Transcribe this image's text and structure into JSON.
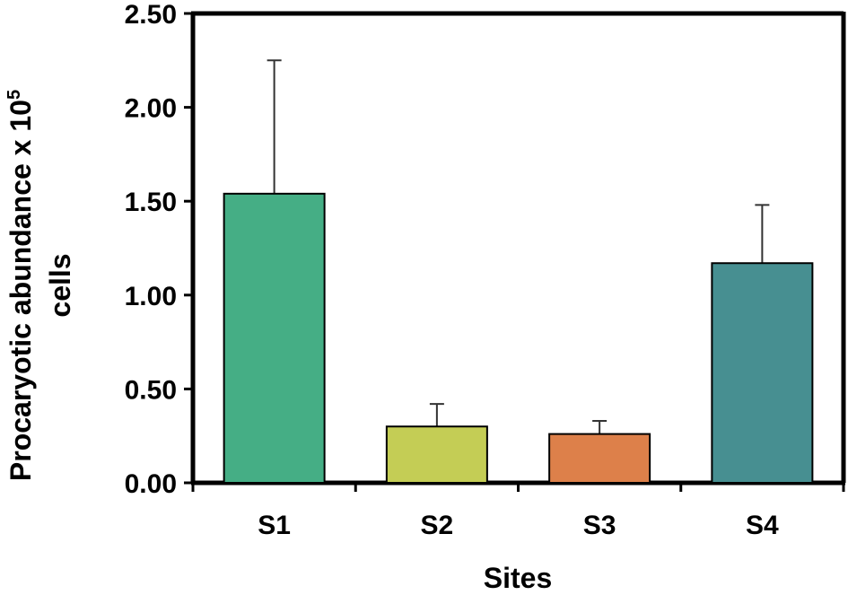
{
  "chart_data": {
    "type": "bar",
    "categories": [
      "S1",
      "S2",
      "S3",
      "S4"
    ],
    "values": [
      1.54,
      0.3,
      0.26,
      1.17
    ],
    "error_upper": [
      2.25,
      0.42,
      0.33,
      1.48
    ],
    "colors": [
      "#45ae85",
      "#c4cd55",
      "#dd804a",
      "#478f91"
    ],
    "xlabel": "Sites",
    "ylabel_line1": "Procaryotic abundance x 10",
    "ylabel_superscript": "5",
    "ylabel_line2": "cells",
    "ylim": [
      0,
      2.5
    ],
    "yticks": [
      "0.00",
      "0.50",
      "1.00",
      "1.50",
      "2.00",
      "2.50"
    ],
    "grid": false,
    "legend": "none"
  }
}
